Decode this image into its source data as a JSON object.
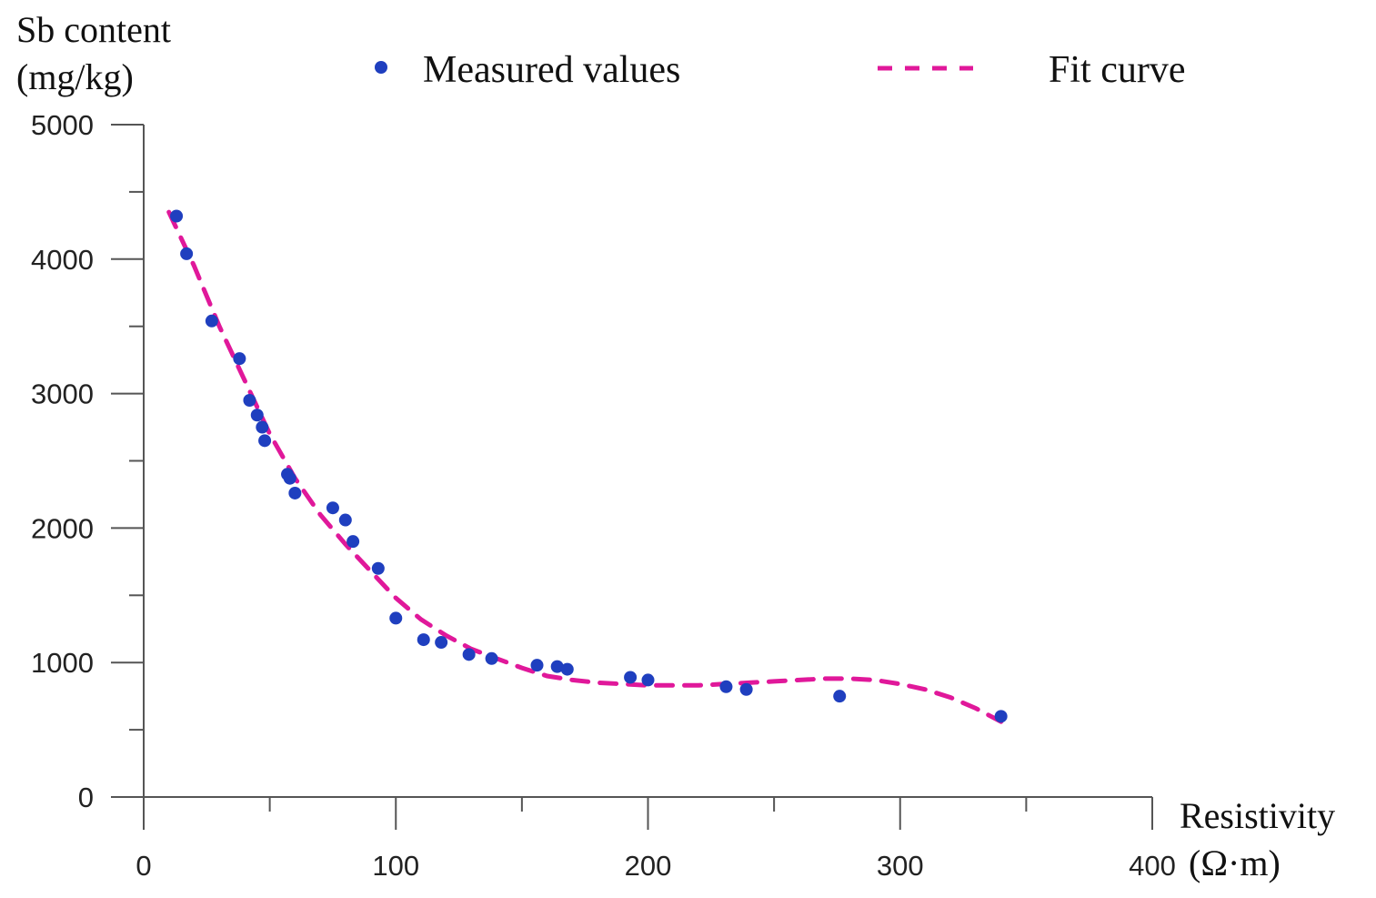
{
  "chart_data": {
    "type": "scatter",
    "title": "",
    "ylabel_line1": "Sb content",
    "ylabel_line2": "(mg/kg)",
    "xlabel_line1": "Resistivity",
    "xlabel_line2": "(Ω·m)",
    "xlim": [
      0,
      400
    ],
    "ylim": [
      0,
      5000
    ],
    "x_ticks": [
      0,
      100,
      200,
      300,
      400
    ],
    "y_ticks": [
      0,
      1000,
      2000,
      3000,
      4000,
      5000
    ],
    "x_minor_step": 50,
    "y_minor_step": 500,
    "grid": false,
    "legend_position": "top",
    "colors": {
      "measured": "#1f3fbf",
      "fit": "#e0189a",
      "axis": "#555555"
    },
    "series": [
      {
        "name": "Measured values",
        "kind": "points",
        "points": [
          [
            13,
            4320
          ],
          [
            17,
            4040
          ],
          [
            27,
            3540
          ],
          [
            38,
            3260
          ],
          [
            42,
            2950
          ],
          [
            45,
            2840
          ],
          [
            47,
            2750
          ],
          [
            48,
            2650
          ],
          [
            57,
            2400
          ],
          [
            58,
            2370
          ],
          [
            60,
            2260
          ],
          [
            75,
            2150
          ],
          [
            80,
            2060
          ],
          [
            83,
            1900
          ],
          [
            93,
            1700
          ],
          [
            100,
            1330
          ],
          [
            111,
            1170
          ],
          [
            118,
            1150
          ],
          [
            129,
            1060
          ],
          [
            138,
            1030
          ],
          [
            156,
            980
          ],
          [
            164,
            970
          ],
          [
            168,
            950
          ],
          [
            193,
            890
          ],
          [
            200,
            870
          ],
          [
            231,
            820
          ],
          [
            239,
            800
          ],
          [
            276,
            750
          ],
          [
            340,
            600
          ]
        ]
      },
      {
        "name": "Fit curve",
        "kind": "curve",
        "points": [
          [
            10,
            4350
          ],
          [
            20,
            3950
          ],
          [
            30,
            3500
          ],
          [
            40,
            3100
          ],
          [
            50,
            2700
          ],
          [
            60,
            2370
          ],
          [
            70,
            2100
          ],
          [
            80,
            1880
          ],
          [
            90,
            1680
          ],
          [
            100,
            1480
          ],
          [
            110,
            1320
          ],
          [
            120,
            1200
          ],
          [
            130,
            1100
          ],
          [
            140,
            1030
          ],
          [
            150,
            960
          ],
          [
            160,
            900
          ],
          [
            170,
            870
          ],
          [
            180,
            850
          ],
          [
            190,
            840
          ],
          [
            200,
            830
          ],
          [
            210,
            830
          ],
          [
            220,
            830
          ],
          [
            230,
            840
          ],
          [
            240,
            850
          ],
          [
            250,
            860
          ],
          [
            260,
            870
          ],
          [
            270,
            880
          ],
          [
            280,
            880
          ],
          [
            290,
            870
          ],
          [
            300,
            840
          ],
          [
            310,
            800
          ],
          [
            320,
            740
          ],
          [
            330,
            660
          ],
          [
            340,
            560
          ]
        ]
      }
    ]
  }
}
